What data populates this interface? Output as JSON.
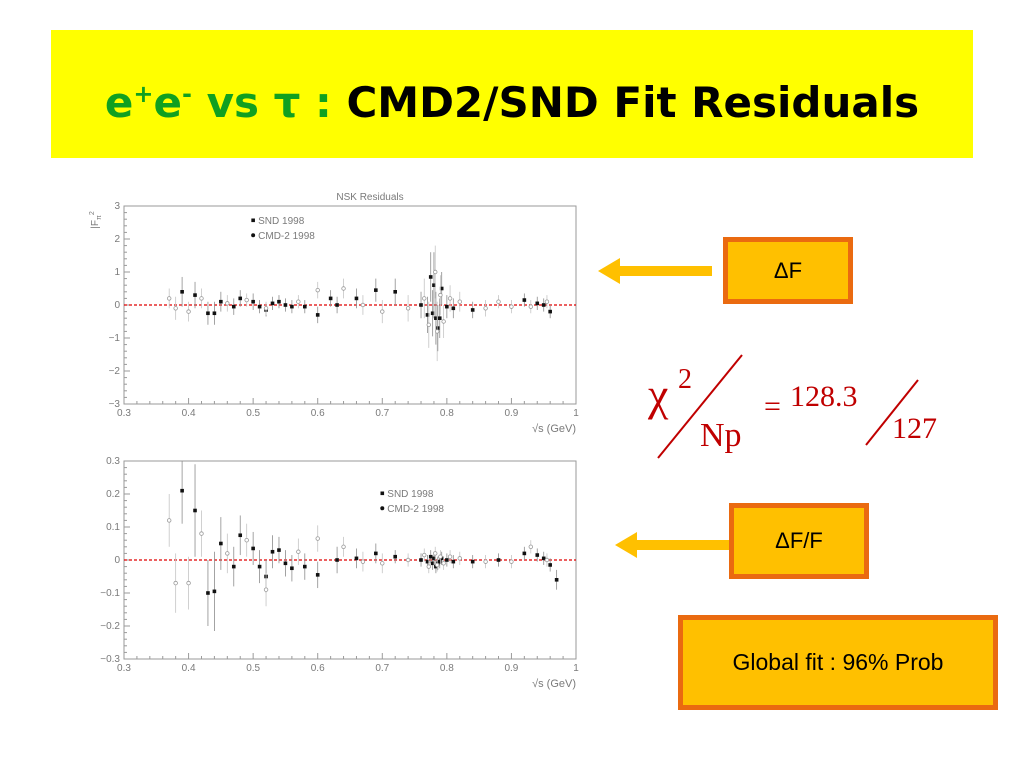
{
  "title": {
    "part1": "e",
    "sup1": "+",
    "part2": "e",
    "sup2": "-",
    "part3": " vs τ : ",
    "part4": "CMD2/SND Fit Residuals",
    "color_green": "#10a020",
    "color_black": "#000000",
    "banner_color": "#ffff00"
  },
  "annotations": {
    "delta_f": "ΔF",
    "delta_f_over_f": "ΔF/F",
    "global_fit": "Global fit : 96% Prob",
    "box_fill": "#ffc000",
    "box_border": "#ea6a10",
    "arrow_color": "#ffc000"
  },
  "formula": {
    "chi": "χ",
    "power": "2",
    "denominator": "Np",
    "equals": "=",
    "numerator": "128.3",
    "dof": "127",
    "color": "#c00000"
  },
  "chart_data": [
    {
      "type": "scatter",
      "title": "NSK Residuals",
      "ylabel": "|F",
      "ylabel_sub": "π",
      "ylabel_sup": "2",
      "xlabel": "√s (GeV)",
      "xlim": [
        0.3,
        1.0
      ],
      "ylim": [
        -3,
        3
      ],
      "xticks": [
        "0.3",
        "0.4",
        "0.5",
        "0.6",
        "0.7",
        "0.8",
        "0.9",
        "1"
      ],
      "yticks": [
        "3",
        "2",
        "1",
        "0",
        "−1",
        "−2",
        "−3"
      ],
      "grid": false,
      "reference_line": 0,
      "legend_position": "top-left",
      "series": [
        {
          "name": "SND 1998",
          "marker": "filled",
          "points": [
            {
              "x": 0.39,
              "y": 0.4,
              "err": 0.45
            },
            {
              "x": 0.41,
              "y": 0.3,
              "err": 0.4
            },
            {
              "x": 0.43,
              "y": -0.25,
              "err": 0.35
            },
            {
              "x": 0.44,
              "y": -0.25,
              "err": 0.35
            },
            {
              "x": 0.45,
              "y": 0.1,
              "err": 0.3
            },
            {
              "x": 0.47,
              "y": -0.05,
              "err": 0.25
            },
            {
              "x": 0.48,
              "y": 0.2,
              "err": 0.25
            },
            {
              "x": 0.5,
              "y": 0.1,
              "err": 0.25
            },
            {
              "x": 0.51,
              "y": -0.05,
              "err": 0.2
            },
            {
              "x": 0.52,
              "y": -0.15,
              "err": 0.2
            },
            {
              "x": 0.53,
              "y": 0.05,
              "err": 0.2
            },
            {
              "x": 0.54,
              "y": 0.1,
              "err": 0.2
            },
            {
              "x": 0.55,
              "y": 0.0,
              "err": 0.2
            },
            {
              "x": 0.56,
              "y": -0.05,
              "err": 0.2
            },
            {
              "x": 0.58,
              "y": -0.05,
              "err": 0.2
            },
            {
              "x": 0.6,
              "y": -0.3,
              "err": 0.25
            },
            {
              "x": 0.62,
              "y": 0.2,
              "err": 0.25
            },
            {
              "x": 0.63,
              "y": 0.0,
              "err": 0.25
            },
            {
              "x": 0.66,
              "y": 0.2,
              "err": 0.3
            },
            {
              "x": 0.69,
              "y": 0.45,
              "err": 0.35
            },
            {
              "x": 0.72,
              "y": 0.4,
              "err": 0.4
            },
            {
              "x": 0.76,
              "y": 0.0,
              "err": 0.4
            },
            {
              "x": 0.77,
              "y": -0.3,
              "err": 0.55
            },
            {
              "x": 0.775,
              "y": 0.85,
              "err": 0.75
            },
            {
              "x": 0.778,
              "y": -0.25,
              "err": 0.7
            },
            {
              "x": 0.78,
              "y": 0.6,
              "err": 1.0
            },
            {
              "x": 0.783,
              "y": -0.4,
              "err": 0.8
            },
            {
              "x": 0.786,
              "y": -0.7,
              "err": 0.7
            },
            {
              "x": 0.789,
              "y": -0.4,
              "err": 0.6
            },
            {
              "x": 0.792,
              "y": 0.5,
              "err": 0.5
            },
            {
              "x": 0.8,
              "y": -0.05,
              "err": 0.35
            },
            {
              "x": 0.81,
              "y": -0.1,
              "err": 0.3
            },
            {
              "x": 0.84,
              "y": -0.15,
              "err": 0.25
            },
            {
              "x": 0.92,
              "y": 0.15,
              "err": 0.2
            },
            {
              "x": 0.94,
              "y": 0.05,
              "err": 0.2
            },
            {
              "x": 0.95,
              "y": 0.0,
              "err": 0.2
            },
            {
              "x": 0.96,
              "y": -0.2,
              "err": 0.2
            }
          ]
        },
        {
          "name": "CMD-2 1998",
          "marker": "open",
          "points": [
            {
              "x": 0.37,
              "y": 0.2,
              "err": 0.3
            },
            {
              "x": 0.38,
              "y": -0.1,
              "err": 0.35
            },
            {
              "x": 0.4,
              "y": -0.2,
              "err": 0.3
            },
            {
              "x": 0.42,
              "y": 0.2,
              "err": 0.3
            },
            {
              "x": 0.46,
              "y": 0.05,
              "err": 0.25
            },
            {
              "x": 0.49,
              "y": 0.15,
              "err": 0.2
            },
            {
              "x": 0.52,
              "y": -0.1,
              "err": 0.2
            },
            {
              "x": 0.57,
              "y": 0.1,
              "err": 0.2
            },
            {
              "x": 0.6,
              "y": 0.45,
              "err": 0.25
            },
            {
              "x": 0.64,
              "y": 0.5,
              "err": 0.3
            },
            {
              "x": 0.67,
              "y": 0.0,
              "err": 0.3
            },
            {
              "x": 0.7,
              "y": -0.2,
              "err": 0.35
            },
            {
              "x": 0.74,
              "y": -0.1,
              "err": 0.4
            },
            {
              "x": 0.765,
              "y": 0.2,
              "err": 0.6
            },
            {
              "x": 0.772,
              "y": -0.6,
              "err": 0.7
            },
            {
              "x": 0.782,
              "y": 1.0,
              "err": 0.8
            },
            {
              "x": 0.785,
              "y": -0.8,
              "err": 0.9
            },
            {
              "x": 0.79,
              "y": 0.3,
              "err": 0.6
            },
            {
              "x": 0.795,
              "y": -0.5,
              "err": 0.5
            },
            {
              "x": 0.805,
              "y": 0.2,
              "err": 0.4
            },
            {
              "x": 0.82,
              "y": 0.1,
              "err": 0.3
            },
            {
              "x": 0.86,
              "y": -0.1,
              "err": 0.25
            },
            {
              "x": 0.88,
              "y": 0.1,
              "err": 0.2
            },
            {
              "x": 0.9,
              "y": -0.05,
              "err": 0.2
            },
            {
              "x": 0.93,
              "y": -0.05,
              "err": 0.2
            },
            {
              "x": 0.955,
              "y": 0.1,
              "err": 0.2
            }
          ]
        }
      ]
    },
    {
      "type": "scatter",
      "title": "",
      "ylabel": "",
      "xlabel": "√s (GeV)",
      "xlim": [
        0.3,
        1.0
      ],
      "ylim": [
        -0.3,
        0.3
      ],
      "xticks": [
        "0.3",
        "0.4",
        "0.5",
        "0.6",
        "0.7",
        "0.8",
        "0.9",
        "1"
      ],
      "yticks": [
        "0.3",
        "0.2",
        "0.1",
        "0",
        "−0.1",
        "−0.2",
        "−0.3"
      ],
      "grid": false,
      "reference_line": 0,
      "legend_position": "top-right",
      "series": [
        {
          "name": "SND 1998",
          "marker": "filled",
          "points": [
            {
              "x": 0.39,
              "y": 0.21,
              "err": 0.1
            },
            {
              "x": 0.41,
              "y": 0.15,
              "err": 0.14
            },
            {
              "x": 0.43,
              "y": -0.1,
              "err": 0.1
            },
            {
              "x": 0.44,
              "y": -0.095,
              "err": 0.12
            },
            {
              "x": 0.45,
              "y": 0.05,
              "err": 0.08
            },
            {
              "x": 0.47,
              "y": -0.02,
              "err": 0.06
            },
            {
              "x": 0.48,
              "y": 0.075,
              "err": 0.06
            },
            {
              "x": 0.5,
              "y": 0.035,
              "err": 0.05
            },
            {
              "x": 0.51,
              "y": -0.02,
              "err": 0.05
            },
            {
              "x": 0.52,
              "y": -0.05,
              "err": 0.05
            },
            {
              "x": 0.53,
              "y": 0.025,
              "err": 0.05
            },
            {
              "x": 0.54,
              "y": 0.03,
              "err": 0.04
            },
            {
              "x": 0.55,
              "y": -0.01,
              "err": 0.04
            },
            {
              "x": 0.56,
              "y": -0.025,
              "err": 0.04
            },
            {
              "x": 0.58,
              "y": -0.02,
              "err": 0.04
            },
            {
              "x": 0.6,
              "y": -0.045,
              "err": 0.04
            },
            {
              "x": 0.63,
              "y": 0.0,
              "err": 0.04
            },
            {
              "x": 0.66,
              "y": 0.005,
              "err": 0.03
            },
            {
              "x": 0.69,
              "y": 0.02,
              "err": 0.03
            },
            {
              "x": 0.72,
              "y": 0.01,
              "err": 0.02
            },
            {
              "x": 0.76,
              "y": 0.0,
              "err": 0.02
            },
            {
              "x": 0.77,
              "y": -0.005,
              "err": 0.02
            },
            {
              "x": 0.775,
              "y": 0.01,
              "err": 0.02
            },
            {
              "x": 0.778,
              "y": -0.01,
              "err": 0.02
            },
            {
              "x": 0.78,
              "y": 0.005,
              "err": 0.02
            },
            {
              "x": 0.783,
              "y": -0.02,
              "err": 0.02
            },
            {
              "x": 0.786,
              "y": -0.01,
              "err": 0.02
            },
            {
              "x": 0.789,
              "y": -0.005,
              "err": 0.02
            },
            {
              "x": 0.792,
              "y": 0.005,
              "err": 0.02
            },
            {
              "x": 0.8,
              "y": 0.0,
              "err": 0.02
            },
            {
              "x": 0.81,
              "y": -0.005,
              "err": 0.02
            },
            {
              "x": 0.84,
              "y": -0.005,
              "err": 0.02
            },
            {
              "x": 0.88,
              "y": 0.0,
              "err": 0.02
            },
            {
              "x": 0.92,
              "y": 0.02,
              "err": 0.02
            },
            {
              "x": 0.94,
              "y": 0.015,
              "err": 0.02
            },
            {
              "x": 0.95,
              "y": 0.005,
              "err": 0.02
            },
            {
              "x": 0.96,
              "y": -0.015,
              "err": 0.02
            },
            {
              "x": 0.97,
              "y": -0.06,
              "err": 0.03
            }
          ]
        },
        {
          "name": "CMD-2 1998",
          "marker": "open",
          "points": [
            {
              "x": 0.37,
              "y": 0.12,
              "err": 0.08
            },
            {
              "x": 0.38,
              "y": -0.07,
              "err": 0.09
            },
            {
              "x": 0.4,
              "y": -0.07,
              "err": 0.08
            },
            {
              "x": 0.42,
              "y": 0.08,
              "err": 0.07
            },
            {
              "x": 0.46,
              "y": 0.02,
              "err": 0.06
            },
            {
              "x": 0.49,
              "y": 0.06,
              "err": 0.05
            },
            {
              "x": 0.52,
              "y": -0.09,
              "err": 0.05
            },
            {
              "x": 0.57,
              "y": 0.025,
              "err": 0.04
            },
            {
              "x": 0.6,
              "y": 0.065,
              "err": 0.04
            },
            {
              "x": 0.64,
              "y": 0.04,
              "err": 0.03
            },
            {
              "x": 0.67,
              "y": -0.005,
              "err": 0.03
            },
            {
              "x": 0.7,
              "y": -0.01,
              "err": 0.03
            },
            {
              "x": 0.74,
              "y": 0.0,
              "err": 0.02
            },
            {
              "x": 0.765,
              "y": 0.015,
              "err": 0.02
            },
            {
              "x": 0.772,
              "y": -0.02,
              "err": 0.02
            },
            {
              "x": 0.782,
              "y": 0.02,
              "err": 0.02
            },
            {
              "x": 0.785,
              "y": -0.015,
              "err": 0.02
            },
            {
              "x": 0.79,
              "y": 0.01,
              "err": 0.02
            },
            {
              "x": 0.795,
              "y": -0.01,
              "err": 0.02
            },
            {
              "x": 0.805,
              "y": 0.01,
              "err": 0.02
            },
            {
              "x": 0.82,
              "y": 0.005,
              "err": 0.02
            },
            {
              "x": 0.86,
              "y": -0.005,
              "err": 0.02
            },
            {
              "x": 0.9,
              "y": -0.005,
              "err": 0.02
            },
            {
              "x": 0.93,
              "y": 0.04,
              "err": 0.02
            },
            {
              "x": 0.955,
              "y": 0.0,
              "err": 0.02
            }
          ]
        }
      ]
    }
  ]
}
